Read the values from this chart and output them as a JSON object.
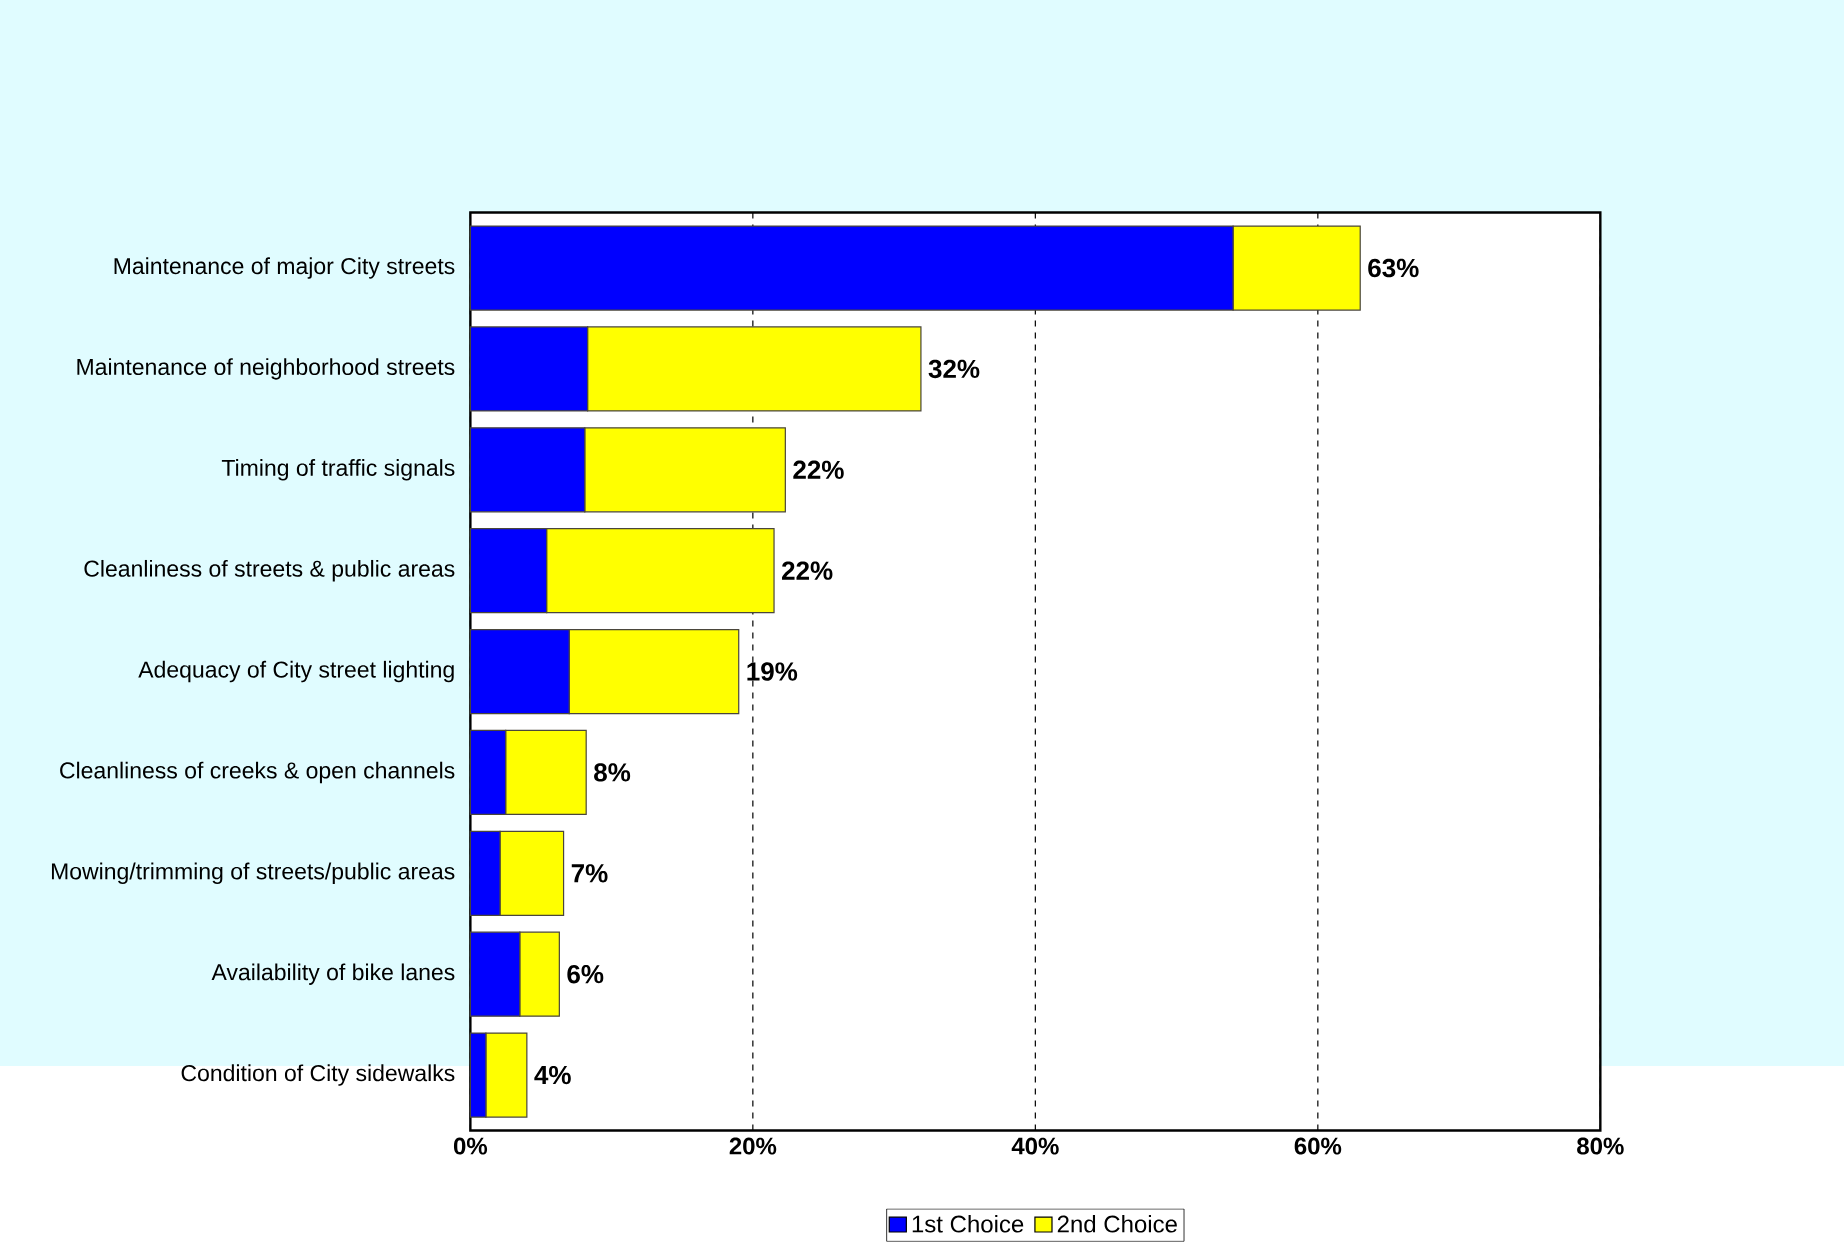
{
  "chart_data": {
    "type": "bar",
    "orientation": "horizontal",
    "stacked": true,
    "categories": [
      "Maintenance of major City streets",
      "Maintenance of neighborhood streets",
      "Timing of traffic signals",
      "Cleanliness of streets & public areas",
      "Adequacy of City street lighting",
      "Cleanliness of creeks & open channels",
      "Mowing/trimming of streets/public areas",
      "Availability of bike lanes",
      "Condition of City sidewalks"
    ],
    "series": [
      {
        "name": "1st Choice",
        "color": "#0000ff",
        "values": [
          54,
          8.3,
          8.1,
          5.4,
          7.0,
          2.5,
          2.1,
          3.5,
          1.1
        ]
      },
      {
        "name": "2nd Choice",
        "color": "#ffff00",
        "values": [
          9,
          23.6,
          14.2,
          16.1,
          12.0,
          5.7,
          4.5,
          2.8,
          2.9
        ]
      }
    ],
    "totals": [
      "63%",
      "32%",
      "22%",
      "22%",
      "19%",
      "8%",
      "7%",
      "6%",
      "4%"
    ],
    "xlim": [
      0,
      80
    ],
    "xticks": [
      {
        "value": 0,
        "label": "0%"
      },
      {
        "value": 20,
        "label": "20%"
      },
      {
        "value": 40,
        "label": "40%"
      },
      {
        "value": 60,
        "label": "60%"
      },
      {
        "value": 80,
        "label": "80%"
      }
    ],
    "grid": "x",
    "legend": "bottom"
  }
}
